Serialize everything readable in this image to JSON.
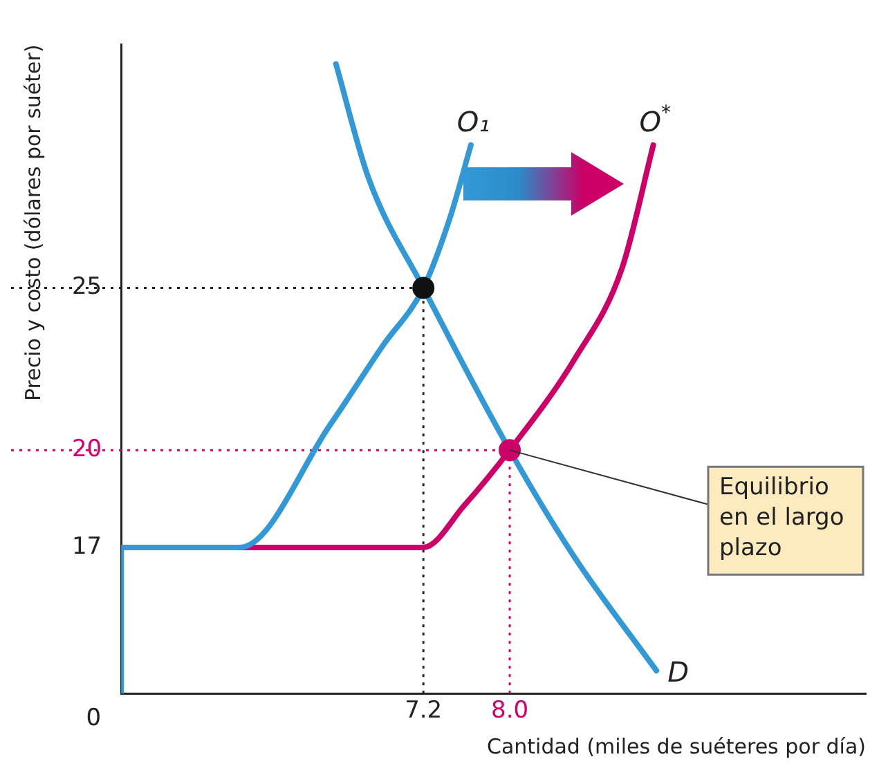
{
  "chart_data": {
    "type": "line",
    "ylabel": "Precio y costo (dólares por suéter)",
    "xlabel": "Cantidad (miles de suéteres por día)",
    "xlim": [
      4.4,
      11.3
    ],
    "ylim": [
      12.5,
      32.5
    ],
    "xticks": [
      7.2,
      {
        "value": 8,
        "label": "8.0"
      }
    ],
    "yticks": [
      17,
      20,
      25
    ],
    "grid": false,
    "legend": false,
    "marker": "none",
    "line_style": "solid",
    "series": [
      {
        "name": "O₁",
        "color": "#3399d6",
        "x": [
          4.4,
          4.4,
          5.5,
          6.34,
          6.82,
          7.2,
          7.45,
          7.64
        ],
        "values": [
          12.5,
          17,
          17,
          20.8,
          23.2,
          25,
          27.2,
          29.4
        ]
      },
      {
        "name": "D",
        "color": "#3399d6",
        "x": [
          6.39,
          6.69,
          7.2,
          8,
          8.6,
          9.36
        ],
        "values": [
          31.9,
          28.4,
          25,
          20,
          16.7,
          13.2
        ]
      },
      {
        "name": "O$^{*}$",
        "color": "#cc0066",
        "x": [
          5.5,
          7.2,
          7.58,
          8,
          8.6,
          9.04,
          9.33
        ],
        "values": [
          17,
          17,
          18.3,
          20,
          22.8,
          25.6,
          29.4
        ]
      },
      {
        "type": "scatter",
        "marker": "circle",
        "colors": [
          "#111111",
          "#cc0066"
        ],
        "x": [
          7.2,
          8
        ],
        "values": [
          25,
          20
        ]
      }
    ],
    "ref_lines": [
      {
        "axis": "y",
        "value": 25,
        "color": "#222222",
        "line_style": "dotted"
      },
      {
        "axis": "x",
        "value": 7.2,
        "color": "#222222",
        "line_style": "dotted"
      },
      {
        "axis": "y",
        "value": 20,
        "color": "#d4006e",
        "line_style": "dotted"
      },
      {
        "axis": "x",
        "value": 8,
        "color": "#d4006e",
        "line_style": "dotted"
      }
    ],
    "annotations": [
      "0",
      {
        "text": "Equilibrio en el largo plazo",
        "x": 8,
        "y": 20
      }
    ]
  }
}
